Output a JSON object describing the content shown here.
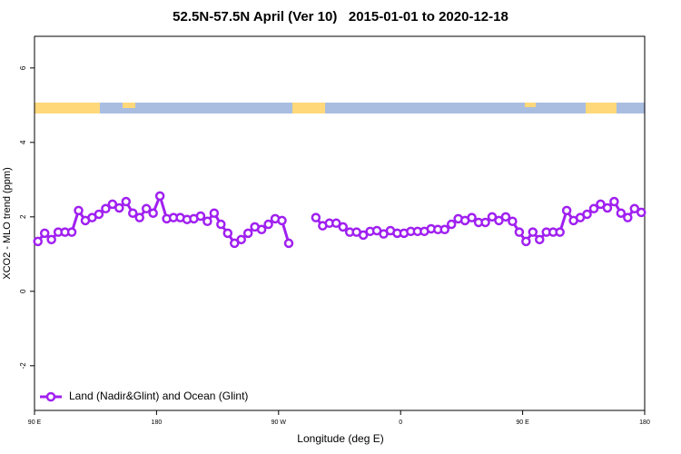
{
  "chart_data": {
    "type": "line",
    "title": "52.5N-57.5N April (Ver 10)   2015-01-01 to 2020-12-18",
    "xlabel": "Longitude (deg E)",
    "ylabel": "XCO2 - MLO trend (ppm)",
    "xlim": [
      90,
      540
    ],
    "ylim": [
      -3.2,
      6.85
    ],
    "xticks": [
      {
        "value": 90,
        "label": "90 E"
      },
      180,
      {
        "value": 270,
        "label": "90 W"
      },
      {
        "value": 360,
        "label": "0"
      },
      {
        "value": 450,
        "label": "90 E"
      },
      {
        "value": 540,
        "label": "180"
      }
    ],
    "yticks": [
      -2,
      0,
      2,
      4,
      6
    ],
    "legend_position": "bottom-left",
    "x": [
      92.5,
      97.5,
      102.5,
      107.5,
      112.5,
      117.5,
      122.5,
      127.5,
      132.5,
      137.5,
      142.5,
      147.5,
      152.5,
      157.5,
      162.5,
      167.5,
      172.5,
      177.5,
      182.5,
      187.5,
      192.5,
      197.5,
      202.5,
      207.5,
      212.5,
      217.5,
      222.5,
      227.5,
      232.5,
      237.5,
      242.5,
      247.5,
      252.5,
      257.5,
      262.5,
      267.5,
      272.5,
      277.5,
      282.5,
      287.5,
      292.5,
      297.5,
      302.5,
      307.5,
      312.5,
      317.5,
      322.5,
      327.5,
      332.5,
      337.5,
      342.5,
      347.5,
      352.5,
      357.5,
      362.5,
      367.5,
      372.5,
      377.5,
      382.5,
      387.5,
      392.5,
      397.5,
      402.5,
      407.5,
      412.5,
      417.5,
      422.5,
      427.5,
      432.5,
      437.5,
      442.5,
      447.5,
      452.5,
      457.5,
      462.5,
      467.5,
      472.5,
      477.5,
      482.5,
      487.5,
      492.5,
      497.5,
      502.5,
      507.5,
      512.5,
      517.5,
      522.5,
      527.5,
      532.5,
      537.5
    ],
    "series": [
      {
        "name": "Land (Nadir&Glint) and Ocean (Glint)",
        "color": "#a020f0",
        "values": [
          1.34,
          1.56,
          1.39,
          1.59,
          1.59,
          1.59,
          2.17,
          1.9,
          1.98,
          2.07,
          2.22,
          2.34,
          2.24,
          2.41,
          2.1,
          1.98,
          2.22,
          2.1,
          2.56,
          1.95,
          1.98,
          1.98,
          1.93,
          1.95,
          2.02,
          1.88,
          2.1,
          1.8,
          1.56,
          1.29,
          1.39,
          1.56,
          1.73,
          1.66,
          1.8,
          1.95,
          1.9,
          1.29,
          null,
          null,
          null,
          1.98,
          1.76,
          1.83,
          1.83,
          1.73,
          1.59,
          1.59,
          1.51,
          1.61,
          1.63,
          1.54,
          1.63,
          1.56,
          1.56,
          1.61,
          1.61,
          1.61,
          1.68,
          1.66,
          1.66,
          1.8,
          1.95,
          1.9,
          1.98,
          1.85,
          1.85,
          2.0,
          1.9,
          2.0,
          1.88,
          1.59,
          1.34,
          1.59,
          1.39,
          1.59,
          1.59,
          1.59,
          2.17,
          1.9,
          1.98,
          2.07,
          2.22,
          2.34,
          2.24,
          2.41,
          2.1,
          1.98,
          2.22,
          2.12
        ]
      }
    ]
  }
}
